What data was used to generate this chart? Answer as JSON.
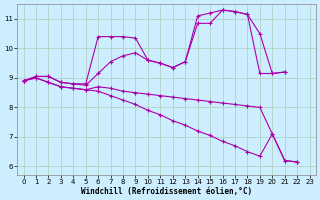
{
  "xlabel": "Windchill (Refroidissement éolien,°C)",
  "background_color": "#cceeff",
  "grid_color": "#aaccbb",
  "line_color": "#aa00aa",
  "xlim": [
    -0.5,
    23.5
  ],
  "ylim": [
    5.7,
    11.5
  ],
  "yticks": [
    6,
    7,
    8,
    9,
    10,
    11
  ],
  "xticks": [
    0,
    1,
    2,
    3,
    4,
    5,
    6,
    7,
    8,
    9,
    10,
    11,
    12,
    13,
    14,
    15,
    16,
    17,
    18,
    19,
    20,
    21,
    22,
    23
  ],
  "series1_x": [
    0,
    1,
    2,
    3,
    4,
    5,
    6,
    7,
    8,
    9,
    10,
    11,
    12,
    13,
    14,
    15,
    16,
    17,
    18,
    19,
    20,
    21,
    22,
    23
  ],
  "series1_y": [
    8.9,
    9.05,
    9.05,
    8.85,
    8.8,
    8.8,
    10.4,
    10.4,
    10.4,
    10.35,
    9.6,
    9.5,
    9.35,
    9.55,
    11.1,
    11.2,
    11.3,
    11.25,
    11.15,
    10.5,
    9.15,
    9.2,
    null,
    null
  ],
  "series2_x": [
    0,
    1,
    2,
    3,
    4,
    5,
    6,
    7,
    8,
    9,
    10,
    11,
    12,
    13,
    14,
    15,
    16,
    17,
    18,
    19,
    20,
    21,
    22,
    23
  ],
  "series2_y": [
    8.9,
    9.05,
    9.05,
    8.85,
    8.8,
    8.75,
    9.15,
    9.55,
    9.75,
    9.85,
    9.6,
    9.5,
    9.35,
    9.55,
    10.85,
    10.85,
    11.3,
    11.25,
    11.15,
    9.15,
    9.15,
    9.2,
    null,
    null
  ],
  "series3_x": [
    0,
    1,
    2,
    3,
    4,
    5,
    6,
    7,
    8,
    9,
    10,
    11,
    12,
    13,
    14,
    15,
    16,
    17,
    18,
    19,
    20,
    21,
    22,
    23
  ],
  "series3_y": [
    8.9,
    9.0,
    8.85,
    8.7,
    8.65,
    8.6,
    8.7,
    8.65,
    8.55,
    8.5,
    8.45,
    8.4,
    8.35,
    8.3,
    8.25,
    8.2,
    8.15,
    8.1,
    8.05,
    8.0,
    7.1,
    6.2,
    6.15,
    null
  ],
  "series4_x": [
    0,
    1,
    2,
    3,
    4,
    5,
    6,
    7,
    8,
    9,
    10,
    11,
    12,
    13,
    14,
    15,
    16,
    17,
    18,
    19,
    20,
    21,
    22,
    23
  ],
  "series4_y": [
    8.9,
    9.0,
    8.85,
    8.7,
    8.65,
    8.6,
    8.55,
    8.4,
    8.25,
    8.1,
    7.9,
    7.75,
    7.55,
    7.4,
    7.2,
    7.05,
    6.85,
    6.7,
    6.5,
    6.35,
    7.1,
    6.2,
    6.15,
    null
  ]
}
